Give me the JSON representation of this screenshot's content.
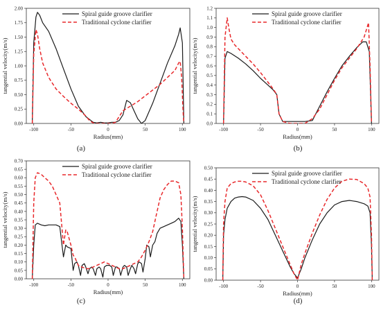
{
  "colors": {
    "spiral": "#1a1a1a",
    "traditional": "#e8282b",
    "axis": "#333333"
  },
  "chart_data": [
    {
      "type": "line",
      "panel_label": "(a)",
      "xlabel": "Radius(mm)",
      "ylabel": "tangential velocity(m/s)",
      "xlim": [
        -110,
        110
      ],
      "ylim": [
        0,
        2.0
      ],
      "xticks": [
        "-100",
        "-50",
        "0",
        "50",
        "100"
      ],
      "yticks": [
        "0.00",
        "0.25",
        "0.50",
        "0.75",
        "1.00",
        "1.25",
        "1.50",
        "1.75",
        "2.00"
      ],
      "legend_position": "top-right",
      "series": [
        {
          "name": "Spiral guide groove clarifier",
          "style": "solid",
          "x": [
            -102,
            -100,
            -97,
            -95,
            -92,
            -88,
            -80,
            -70,
            -60,
            -50,
            -40,
            -30,
            -22,
            -20,
            -15,
            -10,
            -5,
            0,
            5,
            10,
            15,
            20,
            25,
            30,
            35,
            40,
            45,
            50,
            60,
            70,
            80,
            90,
            95,
            97,
            100,
            102
          ],
          "y": [
            0.0,
            1.4,
            1.85,
            1.93,
            1.88,
            1.75,
            1.6,
            1.3,
            0.95,
            0.6,
            0.3,
            0.12,
            0.04,
            0.02,
            0.01,
            0.02,
            0.01,
            0.01,
            0.02,
            0.02,
            0.05,
            0.15,
            0.4,
            0.36,
            0.22,
            0.08,
            0.0,
            0.05,
            0.35,
            0.7,
            1.05,
            1.35,
            1.55,
            1.66,
            1.4,
            0.0
          ]
        },
        {
          "name": "Traditional cyclone clarifier",
          "style": "dashed",
          "x": [
            -102,
            -100,
            -97,
            -95,
            -92,
            -88,
            -80,
            -70,
            -60,
            -50,
            -40,
            -30,
            -25,
            -20,
            -15,
            -10,
            -5,
            0,
            5,
            10,
            15,
            20,
            25,
            30,
            40,
            50,
            60,
            70,
            80,
            90,
            95,
            97,
            99,
            101,
            102
          ],
          "y": [
            0.0,
            1.2,
            1.63,
            1.55,
            1.3,
            1.05,
            0.8,
            0.6,
            0.47,
            0.35,
            0.25,
            0.13,
            0.05,
            0.01,
            0.0,
            0.0,
            0.0,
            0.0,
            0.0,
            0.02,
            0.12,
            0.22,
            0.26,
            0.3,
            0.38,
            0.48,
            0.58,
            0.68,
            0.8,
            0.92,
            1.05,
            1.08,
            0.8,
            0.2,
            0.0
          ]
        }
      ]
    },
    {
      "type": "line",
      "panel_label": "(b)",
      "xlabel": "Radius(mm)",
      "ylabel": "tangential velocity(m/s)",
      "xlim": [
        -110,
        110
      ],
      "ylim": [
        0,
        1.2
      ],
      "xticks": [
        "-100",
        "-50",
        "0",
        "50",
        "100"
      ],
      "yticks": [
        "0.0",
        "0.1",
        "0.2",
        "0.3",
        "0.4",
        "0.5",
        "0.6",
        "0.7",
        "0.8",
        "0.9",
        "1.0",
        "1.1",
        "1.2"
      ],
      "legend_position": "top-right",
      "series": [
        {
          "name": "Spiral guide groove clarifier",
          "style": "solid",
          "x": [
            -100,
            -98,
            -95,
            -90,
            -80,
            -70,
            -60,
            -50,
            -40,
            -33,
            -28,
            -25,
            -20,
            -10,
            0,
            10,
            20,
            30,
            40,
            50,
            60,
            70,
            80,
            88,
            93,
            97,
            100
          ],
          "y": [
            0.0,
            0.68,
            0.75,
            0.73,
            0.68,
            0.62,
            0.55,
            0.47,
            0.4,
            0.35,
            0.3,
            0.1,
            0.02,
            0.02,
            0.02,
            0.02,
            0.03,
            0.18,
            0.33,
            0.47,
            0.6,
            0.7,
            0.79,
            0.85,
            0.85,
            0.75,
            0.0
          ]
        },
        {
          "name": "Traditional cyclone clarifier",
          "style": "dashed",
          "x": [
            -100,
            -98,
            -95,
            -93,
            -90,
            -85,
            -80,
            -70,
            -60,
            -50,
            -40,
            -33,
            -28,
            -25,
            -20,
            -10,
            0,
            10,
            20,
            30,
            40,
            50,
            60,
            70,
            80,
            90,
            94,
            96,
            98,
            100
          ],
          "y": [
            0.0,
            0.9,
            1.1,
            1.0,
            0.88,
            0.82,
            0.78,
            0.7,
            0.62,
            0.53,
            0.43,
            0.36,
            0.3,
            0.1,
            0.02,
            0.0,
            0.0,
            0.0,
            0.05,
            0.15,
            0.3,
            0.45,
            0.58,
            0.68,
            0.78,
            0.9,
            1.0,
            1.05,
            0.6,
            0.0
          ]
        }
      ]
    },
    {
      "type": "line",
      "panel_label": "(c)",
      "xlabel": "Radius(mm)",
      "ylabel": "tangential velocity(m/s)",
      "xlim": [
        -110,
        110
      ],
      "ylim": [
        0,
        0.7
      ],
      "xticks": [
        "-100",
        "-50",
        "0",
        "50",
        "100"
      ],
      "yticks": [
        "0.00",
        "0.05",
        "0.10",
        "0.15",
        "0.20",
        "0.25",
        "0.30",
        "0.35",
        "0.40",
        "0.45",
        "0.50",
        "0.55",
        "0.60",
        "0.65",
        "0.70"
      ],
      "legend_position": "top-right",
      "series": [
        {
          "name": "Spiral guide groove clarifier",
          "style": "solid",
          "x": [
            -102,
            -100,
            -98,
            -95,
            -90,
            -85,
            -80,
            -75,
            -70,
            -65,
            -62,
            -60,
            -57,
            -55,
            -50,
            -47,
            -45,
            -42,
            -40,
            -37,
            -35,
            -32,
            -30,
            -27,
            -25,
            -22,
            -20,
            -17,
            -15,
            -12,
            -10,
            -7,
            -5,
            -2,
            0,
            2,
            5,
            7,
            10,
            12,
            15,
            17,
            20,
            22,
            25,
            27,
            30,
            32,
            35,
            37,
            40,
            42,
            45,
            47,
            50,
            52,
            55,
            57,
            60,
            63,
            66,
            70,
            75,
            80,
            85,
            90,
            95,
            98,
            100,
            102
          ],
          "y": [
            0.0,
            0.2,
            0.32,
            0.33,
            0.32,
            0.315,
            0.32,
            0.32,
            0.32,
            0.31,
            0.2,
            0.13,
            0.2,
            0.19,
            0.18,
            0.05,
            0.09,
            0.1,
            0.08,
            0.02,
            0.08,
            0.09,
            0.07,
            0.03,
            0.06,
            0.07,
            0.06,
            0.02,
            0.06,
            0.07,
            0.06,
            0.01,
            0.07,
            0.08,
            0.08,
            0.08,
            0.07,
            0.02,
            0.07,
            0.07,
            0.06,
            0.02,
            0.07,
            0.08,
            0.07,
            0.02,
            0.06,
            0.08,
            0.06,
            0.03,
            0.09,
            0.1,
            0.09,
            0.04,
            0.12,
            0.2,
            0.19,
            0.13,
            0.2,
            0.22,
            0.27,
            0.3,
            0.31,
            0.32,
            0.33,
            0.34,
            0.36,
            0.34,
            0.2,
            0.0
          ]
        },
        {
          "name": "Traditional cyclone clarifier",
          "style": "dashed",
          "x": [
            -102,
            -100,
            -98,
            -95,
            -90,
            -85,
            -80,
            -75,
            -70,
            -65,
            -62,
            -60,
            -57,
            -55,
            -50,
            -47,
            -45,
            -42,
            -40,
            -37,
            -35,
            -30,
            -25,
            -20,
            -15,
            -10,
            -5,
            0,
            5,
            10,
            15,
            20,
            25,
            30,
            35,
            40,
            45,
            50,
            55,
            60,
            65,
            70,
            75,
            80,
            85,
            90,
            95,
            98,
            100,
            102
          ],
          "y": [
            0.0,
            0.45,
            0.6,
            0.63,
            0.62,
            0.6,
            0.58,
            0.55,
            0.5,
            0.45,
            0.3,
            0.2,
            0.29,
            0.28,
            0.2,
            0.14,
            0.13,
            0.1,
            0.08,
            0.07,
            0.07,
            0.06,
            0.06,
            0.07,
            0.08,
            0.09,
            0.1,
            0.09,
            0.08,
            0.07,
            0.06,
            0.06,
            0.07,
            0.08,
            0.09,
            0.1,
            0.13,
            0.17,
            0.22,
            0.28,
            0.38,
            0.48,
            0.53,
            0.56,
            0.58,
            0.58,
            0.57,
            0.5,
            0.3,
            0.0
          ]
        }
      ]
    },
    {
      "type": "line",
      "panel_label": "(d)",
      "xlabel": "Radius(mm)",
      "ylabel": "tangential velocity(m/s)",
      "xlim": [
        -110,
        110
      ],
      "ylim": [
        0,
        0.5
      ],
      "xticks": [
        "-100",
        "-50",
        "0",
        "50",
        "100"
      ],
      "yticks": [
        "0.00",
        "0.05",
        "0.10",
        "0.15",
        "0.20",
        "0.25",
        "0.30",
        "0.35",
        "0.40",
        "0.45",
        "0.50"
      ],
      "legend_position": "top-right",
      "series": [
        {
          "name": "Spiral guide groove clarifier",
          "style": "solid",
          "x": [
            -101,
            -100,
            -98,
            -95,
            -90,
            -85,
            -80,
            -75,
            -70,
            -60,
            -50,
            -40,
            -30,
            -20,
            -10,
            -5,
            0,
            5,
            10,
            20,
            30,
            40,
            50,
            60,
            70,
            80,
            90,
            95,
            98,
            100,
            101
          ],
          "y": [
            0.0,
            0.2,
            0.27,
            0.32,
            0.35,
            0.365,
            0.37,
            0.372,
            0.37,
            0.355,
            0.32,
            0.27,
            0.2,
            0.13,
            0.06,
            0.03,
            0.01,
            0.05,
            0.1,
            0.18,
            0.25,
            0.3,
            0.335,
            0.35,
            0.355,
            0.35,
            0.34,
            0.33,
            0.3,
            0.15,
            0.0
          ]
        },
        {
          "name": "Traditional cyclone clarifier",
          "style": "dashed",
          "x": [
            -101,
            -100,
            -98,
            -95,
            -90,
            -85,
            -80,
            -75,
            -70,
            -60,
            -50,
            -40,
            -30,
            -20,
            -10,
            -5,
            0,
            5,
            10,
            20,
            30,
            40,
            50,
            60,
            70,
            80,
            90,
            95,
            98,
            100,
            101
          ],
          "y": [
            0.0,
            0.25,
            0.35,
            0.41,
            0.43,
            0.437,
            0.44,
            0.44,
            0.437,
            0.42,
            0.38,
            0.31,
            0.23,
            0.15,
            0.07,
            0.03,
            0.0,
            0.07,
            0.12,
            0.21,
            0.29,
            0.36,
            0.41,
            0.44,
            0.45,
            0.448,
            0.43,
            0.41,
            0.37,
            0.2,
            0.0
          ]
        }
      ]
    }
  ]
}
